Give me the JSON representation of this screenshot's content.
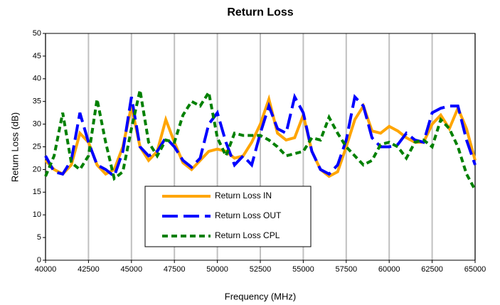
{
  "chart_data": {
    "type": "line",
    "title": "Return Loss",
    "x_label": "Frequency (MHz)",
    "y_label": "Return Loss (dB)",
    "x": [
      40000,
      40500,
      41000,
      41500,
      42000,
      42500,
      43000,
      43500,
      44000,
      44500,
      45000,
      45500,
      46000,
      46500,
      47000,
      47500,
      48000,
      48500,
      49000,
      49500,
      50000,
      50500,
      51000,
      51500,
      52000,
      52500,
      53000,
      53500,
      54000,
      54500,
      55000,
      55500,
      56000,
      56500,
      57000,
      57500,
      58000,
      58500,
      59000,
      59500,
      60000,
      60500,
      61000,
      61500,
      62000,
      62500,
      63000,
      63500,
      64000,
      64500,
      65000
    ],
    "series": [
      {
        "name": "Return Loss IN",
        "color": "#ffa500",
        "line_style": "solid",
        "values": [
          22,
          20,
          19,
          21,
          28,
          26,
          21,
          19,
          20,
          25,
          34,
          25,
          22,
          24,
          31,
          26,
          21.5,
          20,
          22,
          24,
          24.5,
          24,
          22.5,
          23,
          26,
          30,
          35.5,
          28,
          26.5,
          27,
          32,
          24,
          20,
          18.5,
          19.5,
          25,
          31,
          34,
          28.5,
          28,
          29.5,
          28.5,
          27,
          26,
          26,
          30,
          32,
          29,
          33.5,
          29,
          22
        ]
      },
      {
        "name": "Return Loss OUT",
        "color": "#0000ff",
        "line_style": "dashed",
        "values": [
          23,
          19.5,
          19,
          22,
          32.5,
          26,
          21,
          20,
          18.5,
          24,
          36,
          25,
          23,
          24,
          27,
          25,
          22,
          20.5,
          22.5,
          30,
          32.5,
          26,
          21,
          23,
          21,
          28,
          34,
          29,
          28,
          36,
          32.5,
          24,
          20,
          19,
          21,
          26.5,
          36,
          34,
          27,
          25,
          25,
          25.5,
          28,
          26.5,
          26,
          32.5,
          33.5,
          34,
          34,
          26.5,
          21
        ]
      },
      {
        "name": "Return Loss CPL",
        "color": "#008000",
        "line_style": "dotted",
        "values": [
          18.5,
          23,
          32.5,
          21.5,
          20,
          23,
          35.5,
          26,
          18,
          19.5,
          29,
          37.5,
          26,
          23,
          26.5,
          26,
          32,
          35,
          34,
          37,
          27,
          23,
          28,
          27.5,
          27.5,
          27.5,
          26.5,
          25,
          23,
          23.5,
          24,
          27,
          26.5,
          31.5,
          28,
          25,
          23,
          21,
          22,
          25.5,
          26,
          25,
          22.5,
          26,
          26.5,
          25,
          31,
          29,
          25,
          19,
          15.5
        ]
      }
    ],
    "xlim": [
      40000,
      65000
    ],
    "xticks": [
      40000,
      42500,
      45000,
      47500,
      50000,
      52500,
      55000,
      57500,
      60000,
      62500,
      65000
    ],
    "ylim": [
      0,
      50
    ],
    "yticks": [
      0,
      5,
      10,
      15,
      20,
      25,
      30,
      35,
      40,
      45,
      50
    ],
    "grid": "x",
    "legend": "bottom-center"
  }
}
